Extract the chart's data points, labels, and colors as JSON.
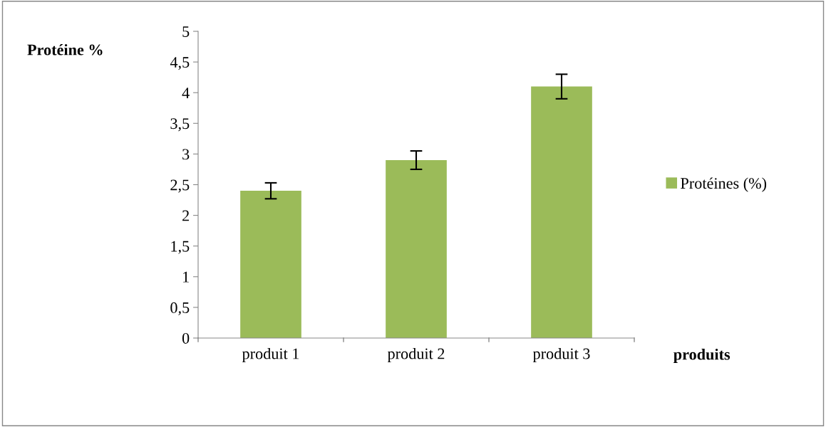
{
  "chart_data": {
    "type": "bar",
    "xlabel": "produits",
    "ylabel": "Protéine %",
    "categories": [
      "produit 1",
      "produit 2",
      "produit 3"
    ],
    "series": [
      {
        "name": "Protéines (%)",
        "color": "#9bbb59",
        "values": [
          2.4,
          2.9,
          4.1
        ],
        "errors": [
          0.13,
          0.15,
          0.2
        ]
      }
    ],
    "ylim": [
      0,
      5
    ],
    "yticks": [
      0,
      {
        "value": 0.5,
        "label": "0,5"
      },
      1,
      {
        "value": 1.5,
        "label": "1,5"
      },
      2,
      {
        "value": 2.5,
        "label": "2,5"
      },
      3,
      {
        "value": 3.5,
        "label": "3,5"
      },
      4,
      {
        "value": 4.5,
        "label": "4,5"
      },
      5
    ],
    "grid": false,
    "legend": "right"
  }
}
